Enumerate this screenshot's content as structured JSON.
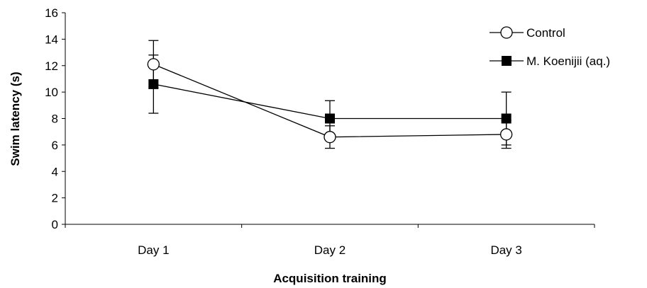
{
  "chart_data": {
    "type": "line",
    "xlabel": "Acquisition training",
    "ylabel": "Swim latency (s)",
    "categories": [
      "Day 1",
      "Day 2",
      "Day 3"
    ],
    "ylim": [
      0,
      16
    ],
    "yticks": [
      0,
      2,
      4,
      6,
      8,
      10,
      12,
      14,
      16
    ],
    "grid": false,
    "legend_position": "top-right",
    "error_bars": true,
    "series": [
      {
        "name": "Control",
        "marker": "open-circle",
        "values": [
          12.1,
          6.6,
          6.8
        ],
        "error": [
          1.8,
          0.85,
          1.05
        ]
      },
      {
        "name": "M. Koenijii (aq.)",
        "marker": "filled-square",
        "values": [
          10.6,
          8.0,
          8.0
        ],
        "error": [
          2.2,
          1.35,
          2.0
        ]
      }
    ],
    "colors": {
      "marker_fill_open": "#ffffff",
      "marker_fill_solid": "#000000",
      "line": "#000000"
    }
  }
}
